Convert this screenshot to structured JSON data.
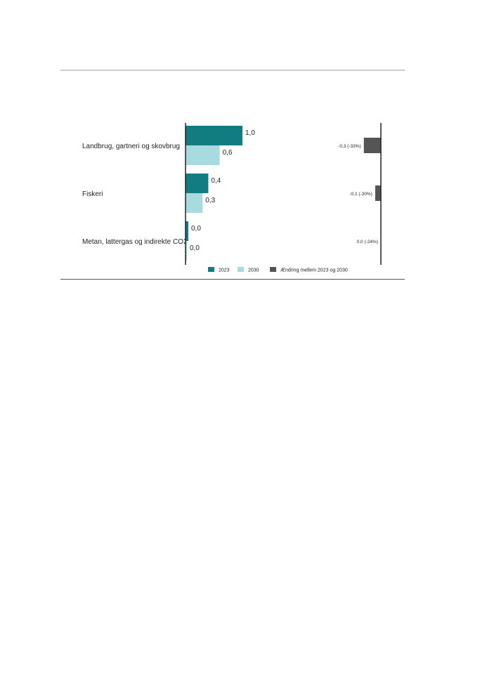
{
  "chart_data": {
    "type": "bar",
    "orientation": "horizontal",
    "categories": [
      "Landbrug, gartneri og skovbrug",
      "Fiskeri",
      "Metan, lattergas og indirekte CO2"
    ],
    "series": [
      {
        "name": "2023",
        "values": [
          1.0,
          0.4,
          0.0
        ],
        "labels": [
          "1,0",
          "0,4",
          "0,0"
        ],
        "color": "#127c83"
      },
      {
        "name": "2030",
        "values": [
          0.6,
          0.3,
          0.0
        ],
        "labels": [
          "0,6",
          "0,3",
          "0,0"
        ],
        "color": "#a8dbe0"
      }
    ],
    "change": {
      "name": "Ændring mellem 2023 og 2030",
      "values": [
        -0.3,
        -0.1,
        0.0
      ],
      "labels": [
        "-0,3 (-33%)",
        "-0,1 (-30%)",
        "0,0 (-24%)"
      ],
      "color": "#555555"
    },
    "xlim": [
      0,
      1.0
    ],
    "legend_position": "bottom",
    "grid": false
  }
}
